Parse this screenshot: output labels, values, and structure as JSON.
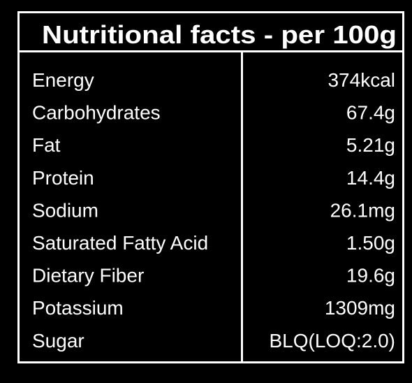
{
  "header": {
    "title": "Nutritional facts - per 100g"
  },
  "table": {
    "rows": [
      [
        "Energy",
        "374kcal"
      ],
      [
        "Carbohydrates",
        "67.4g"
      ],
      [
        "Fat",
        "5.21g"
      ],
      [
        "Protein",
        "14.4g"
      ],
      [
        "Sodium",
        "26.1mg"
      ],
      [
        "Saturated Fatty Acid",
        "1.50g"
      ],
      [
        "Dietary Fiber",
        "19.6g"
      ],
      [
        "Potassium",
        "1309mg"
      ],
      [
        "Sugar",
        "BLQ(LOQ:2.0)"
      ]
    ]
  }
}
